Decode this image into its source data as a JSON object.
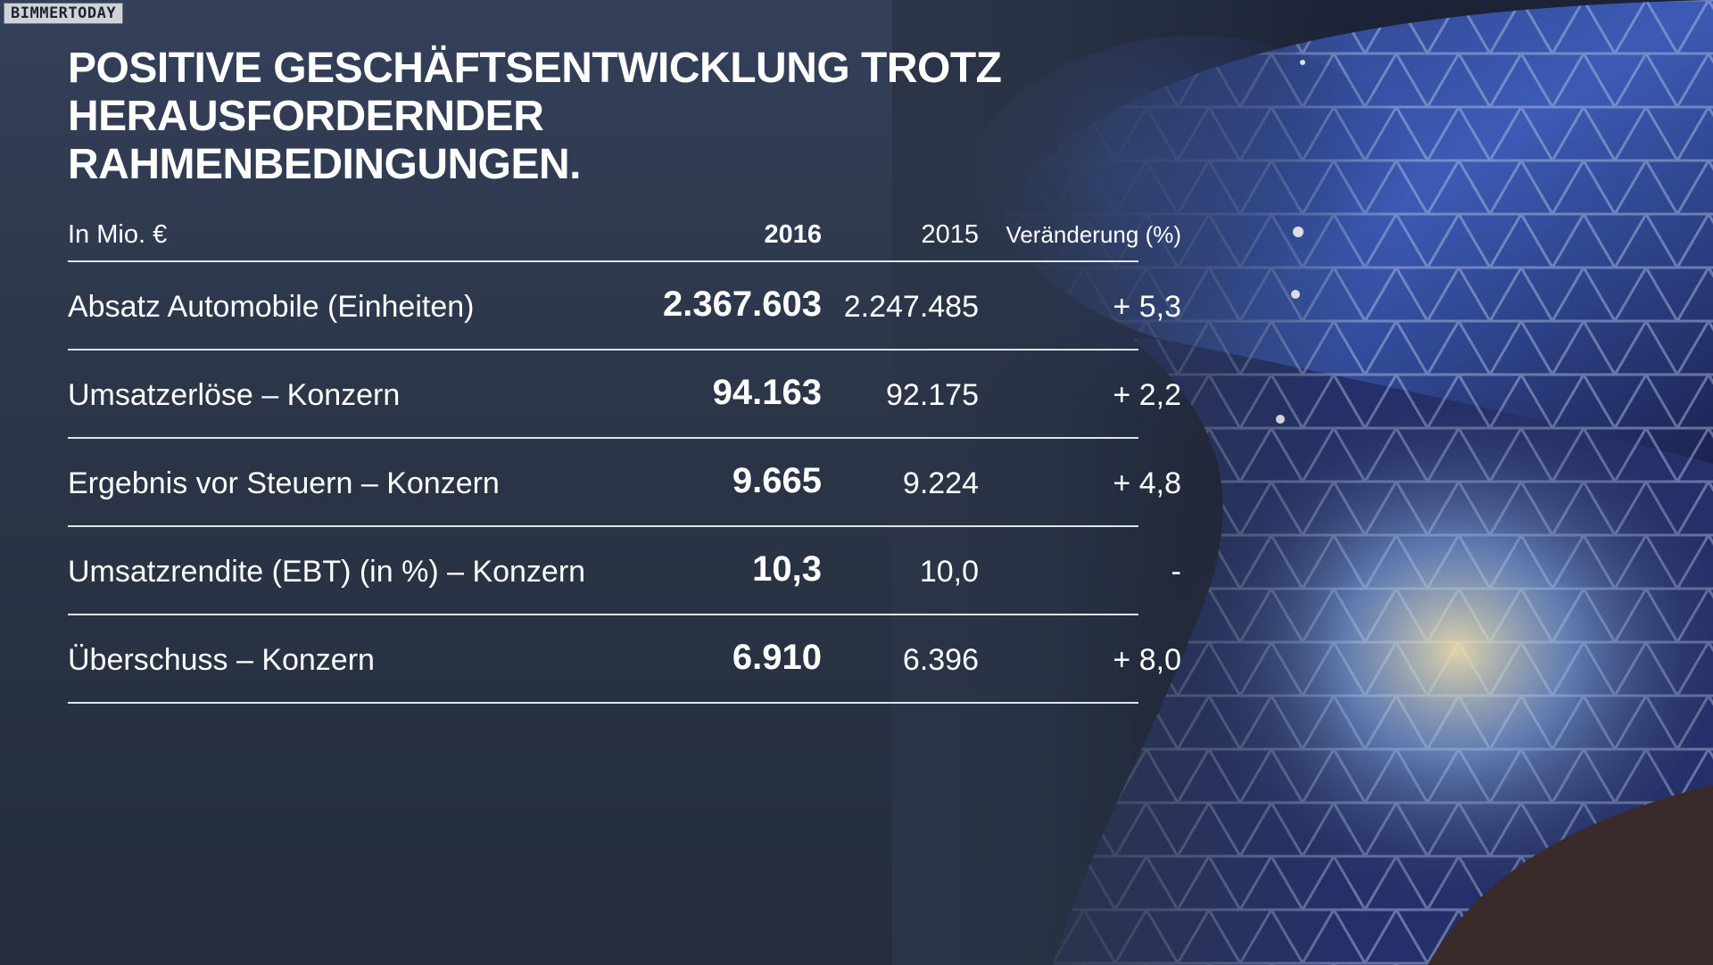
{
  "watermark": "BIMMERTODAY",
  "title": {
    "line1": "POSITIVE GESCHÄFTSENTWICKLUNG TROTZ",
    "line2": "HERAUSFORDERNDER RAHMENBEDINGUNGEN."
  },
  "table": {
    "headers": {
      "label": "In Mio. €",
      "year_current": "2016",
      "year_previous": "2015",
      "change": "Veränderung (%)"
    },
    "rows": [
      {
        "label": "Absatz Automobile (Einheiten)",
        "v2016": "2.367.603",
        "v2015": "2.247.485",
        "change": "+ 5,3"
      },
      {
        "label": "Umsatzerlöse – Konzern",
        "v2016": "94.163",
        "v2015": "92.175",
        "change": "+ 2,2"
      },
      {
        "label": "Ergebnis vor Steuern – Konzern",
        "v2016": "9.665",
        "v2015": "9.224",
        "change": "+ 4,8"
      },
      {
        "label": "Umsatzrendite (EBT) (in %) – Konzern",
        "v2016": "10,3",
        "v2015": "10,0",
        "change": "-"
      },
      {
        "label": "Überschuss – Konzern",
        "v2016": "6.910",
        "v2015": "6.396",
        "change": "+ 8,0"
      }
    ]
  },
  "colors": {
    "background": "#2b3547",
    "text": "#ffffff",
    "rule": "#dfe3ea",
    "accent_light": "#6aa8ff"
  },
  "background_image": "bmw-welt-building-photo"
}
